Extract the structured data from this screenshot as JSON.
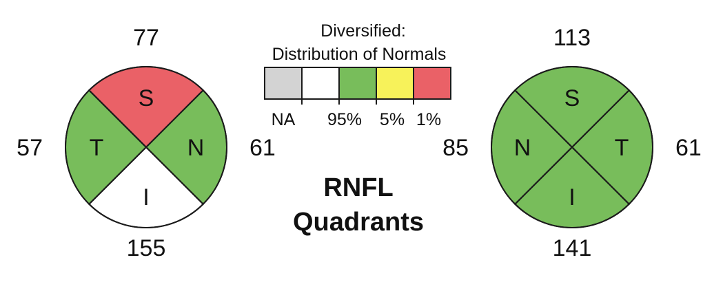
{
  "colors": {
    "na": "#d3d3d3",
    "within": "#ffffff",
    "normal": "#78bd5b",
    "borderline": "#f7f25a",
    "outside": "#ea6167",
    "stroke": "#1b1b1b"
  },
  "legend": {
    "title_line1": "Diversified:",
    "title_line2": "Distribution of Normals",
    "labels": {
      "na": "NA",
      "p95": "95%",
      "p5": "5%",
      "p1": "1%"
    },
    "swatches": [
      {
        "key": "na",
        "color": "#d3d3d3"
      },
      {
        "key": "within",
        "color": "#ffffff"
      },
      {
        "key": "normal",
        "color": "#78bd5b"
      },
      {
        "key": "borderline",
        "color": "#f7f25a"
      },
      {
        "key": "outside",
        "color": "#ea6167"
      }
    ]
  },
  "chart_data": {
    "type": "pie",
    "title": "RNFL Quadrants",
    "title_lines": [
      "RNFL",
      "Quadrants"
    ],
    "legend_placement": "top-center",
    "charts": [
      {
        "id": "left-eye",
        "quadrants": [
          {
            "letter": "S",
            "position": "top",
            "value": 77,
            "color": "#ea6167"
          },
          {
            "letter": "N",
            "position": "right",
            "value": 61,
            "color": "#78bd5b"
          },
          {
            "letter": "I",
            "position": "bottom",
            "value": 155,
            "color": "#ffffff"
          },
          {
            "letter": "T",
            "position": "left",
            "value": 57,
            "color": "#78bd5b"
          }
        ]
      },
      {
        "id": "right-eye",
        "quadrants": [
          {
            "letter": "S",
            "position": "top",
            "value": 113,
            "color": "#78bd5b"
          },
          {
            "letter": "T",
            "position": "right",
            "value": 61,
            "color": "#78bd5b"
          },
          {
            "letter": "I",
            "position": "bottom",
            "value": 141,
            "color": "#78bd5b"
          },
          {
            "letter": "N",
            "position": "left",
            "value": 85,
            "color": "#78bd5b"
          }
        ]
      }
    ]
  }
}
